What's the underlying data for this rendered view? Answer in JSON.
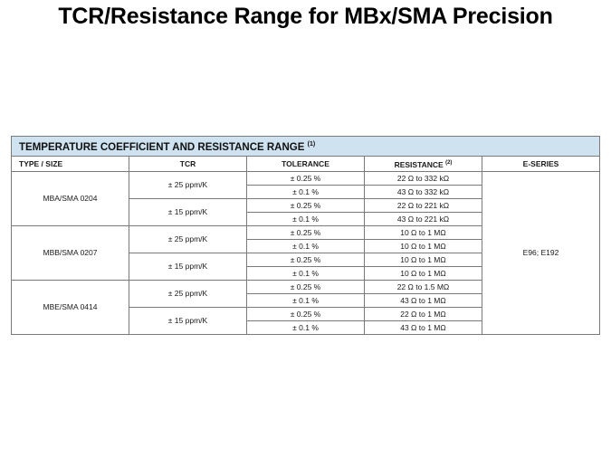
{
  "slide": {
    "title": "TCR/Resistance Range for MBx/SMA Precision"
  },
  "table": {
    "caption": "TEMPERATURE COEFFICIENT AND RESISTANCE RANGE",
    "caption_note": "(1)",
    "headers": {
      "type": "TYPE / SIZE",
      "tcr": "TCR",
      "tolerance": "TOLERANCE",
      "resistance": "RESISTANCE",
      "resistance_note": "(2)",
      "eseries": "E-SERIES"
    },
    "eseries": "E96; E192",
    "groups": [
      {
        "type": "MBA/SMA 0204",
        "tcrs": [
          {
            "tcr": "± 25 ppm/K",
            "rows": [
              {
                "tol": "± 0.25 %",
                "res": "22 Ω to 332 kΩ"
              },
              {
                "tol": "± 0.1 %",
                "res": "43 Ω to 332 kΩ"
              }
            ]
          },
          {
            "tcr": "± 15 ppm/K",
            "rows": [
              {
                "tol": "± 0.25 %",
                "res": "22 Ω to 221 kΩ"
              },
              {
                "tol": "± 0.1 %",
                "res": "43 Ω to 221 kΩ"
              }
            ]
          }
        ]
      },
      {
        "type": "MBB/SMA 0207",
        "tcrs": [
          {
            "tcr": "± 25 ppm/K",
            "rows": [
              {
                "tol": "± 0.25 %",
                "res": "10 Ω to 1 MΩ"
              },
              {
                "tol": "± 0.1 %",
                "res": "10 Ω to 1 MΩ"
              }
            ]
          },
          {
            "tcr": "± 15 ppm/K",
            "rows": [
              {
                "tol": "± 0.25 %",
                "res": "10 Ω to 1 MΩ"
              },
              {
                "tol": "± 0.1 %",
                "res": "10 Ω to 1 MΩ"
              }
            ]
          }
        ]
      },
      {
        "type": "MBE/SMA 0414",
        "tcrs": [
          {
            "tcr": "± 25 ppm/K",
            "rows": [
              {
                "tol": "± 0.25 %",
                "res": "22 Ω to 1.5 MΩ"
              },
              {
                "tol": "± 0.1 %",
                "res": "43 Ω to 1 MΩ"
              }
            ]
          },
          {
            "tcr": "± 15 ppm/K",
            "rows": [
              {
                "tol": "± 0.25 %",
                "res": "22 Ω to 1 MΩ"
              },
              {
                "tol": "± 0.1 %",
                "res": "43 Ω to 1 MΩ"
              }
            ]
          }
        ]
      }
    ]
  }
}
